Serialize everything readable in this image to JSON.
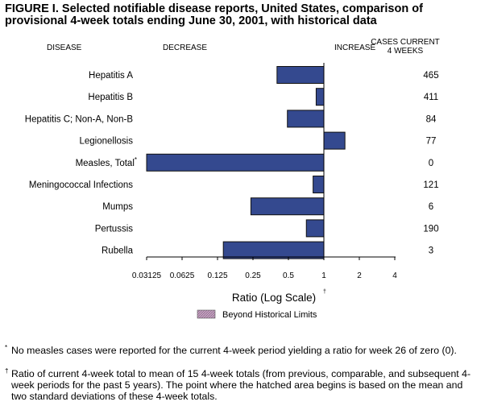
{
  "title_line1": "FIGURE I. Selected notifiable disease reports, United States, comparison of",
  "title_line2": "provisional 4-week totals ending June 30, 2001, with historical data",
  "chart_data": {
    "type": "bar",
    "orientation": "horizontal",
    "xscale": "log2",
    "xlim": [
      0.03125,
      4
    ],
    "xticks": [
      "0.03125",
      "0.0625",
      "0.125",
      "0.25",
      "0.5",
      "1",
      "2",
      "4"
    ],
    "xlabel": "Ratio (Log Scale)",
    "xlabel_mark": "†",
    "header_disease": "DISEASE",
    "header_decrease": "DECREASE",
    "header_increase": "INCREASE",
    "header_cases_1": "CASES CURRENT",
    "header_cases_2": "4 WEEKS",
    "categories": [
      "Hepatitis A",
      "Hepatitis B",
      "Hepatitis C; Non-A, Non-B",
      "Legionellosis",
      "Measles, Total",
      "Meningococcal Infections",
      "Mumps",
      "Pertussis",
      "Rubella"
    ],
    "category_marks": [
      "",
      "",
      "",
      "",
      "*",
      "",
      "",
      "",
      ""
    ],
    "values": [
      0.4,
      0.86,
      0.49,
      1.51,
      0.03125,
      0.81,
      0.24,
      0.71,
      0.14
    ],
    "cases": [
      "465",
      "411",
      "84",
      "77",
      "0",
      "121",
      "6",
      "190",
      "3"
    ],
    "bar_color": "#34498f",
    "legend": {
      "label": "Beyond Historical Limits",
      "color": "#b48cb0",
      "placement": "bottom-center"
    }
  },
  "footnotes": [
    {
      "mark": "*",
      "text": "No measles cases were reported for the current 4-week period yielding a ratio for week 26 of zero (0)."
    },
    {
      "mark": "†",
      "text": "Ratio of current 4-week total to mean of 15 4-week totals (from previous, comparable, and subsequent 4-week periods for the past 5 years). The point where the hatched area begins is based on the mean and two standard deviations of these 4-week totals."
    }
  ]
}
